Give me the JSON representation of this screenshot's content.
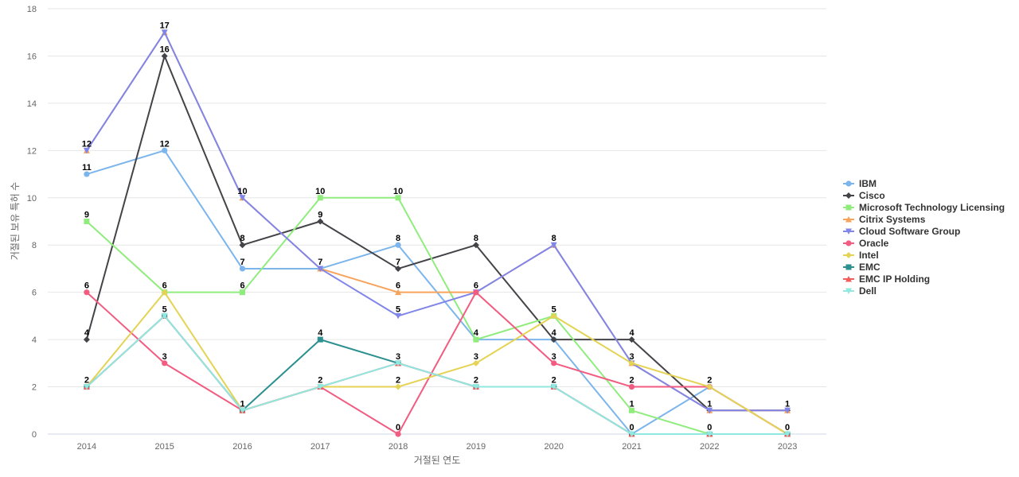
{
  "chart_data": {
    "type": "line",
    "title": "",
    "xlabel": "거절된 연도",
    "ylabel": "거절된 보유 특허 수",
    "categories": [
      "2014",
      "2015",
      "2016",
      "2017",
      "2018",
      "2019",
      "2020",
      "2021",
      "2022",
      "2023"
    ],
    "ylim": [
      0,
      18
    ],
    "yticks": [
      0,
      2,
      4,
      6,
      8,
      10,
      12,
      14,
      16,
      18
    ],
    "grid": true,
    "legend_position": "right",
    "series": [
      {
        "name": "IBM",
        "color": "#7cb5ec",
        "marker": "circle",
        "values": [
          11,
          12,
          7,
          7,
          8,
          4,
          4,
          0,
          2,
          0
        ]
      },
      {
        "name": "Cisco",
        "color": "#434348",
        "marker": "diamond",
        "values": [
          4,
          16,
          8,
          9,
          7,
          8,
          4,
          4,
          1,
          1
        ]
      },
      {
        "name": "Microsoft Technology Licensing",
        "color": "#90ed7d",
        "marker": "square",
        "values": [
          9,
          6,
          6,
          10,
          10,
          4,
          5,
          1,
          0,
          0
        ]
      },
      {
        "name": "Citrix Systems",
        "color": "#f7a35c",
        "marker": "triangle",
        "values": [
          12,
          17,
          10,
          7,
          6,
          6,
          8,
          3,
          1,
          1
        ]
      },
      {
        "name": "Cloud Software Group",
        "color": "#8085e9",
        "marker": "triangle-down",
        "values": [
          12,
          17,
          10,
          7,
          5,
          6,
          8,
          3,
          1,
          1
        ]
      },
      {
        "name": "Oracle",
        "color": "#f15c80",
        "marker": "circle",
        "values": [
          6,
          3,
          1,
          2,
          0,
          6,
          3,
          2,
          2,
          0
        ]
      },
      {
        "name": "Intel",
        "color": "#e4d354",
        "marker": "diamond",
        "values": [
          2,
          6,
          1,
          2,
          2,
          3,
          5,
          3,
          2,
          0
        ]
      },
      {
        "name": "EMC",
        "color": "#2b908f",
        "marker": "square",
        "values": [
          2,
          5,
          1,
          4,
          3,
          2,
          2,
          0,
          0,
          0
        ]
      },
      {
        "name": "EMC IP Holding",
        "color": "#f45b5b",
        "marker": "triangle",
        "values": [
          2,
          5,
          1,
          2,
          3,
          2,
          2,
          0,
          0,
          0
        ]
      },
      {
        "name": "Dell",
        "color": "#91e8e1",
        "marker": "triangle-down",
        "values": [
          2,
          5,
          1,
          2,
          3,
          2,
          2,
          0,
          0,
          0
        ]
      }
    ],
    "data_labels": [
      {
        "x": "2014",
        "value": 12
      },
      {
        "x": "2014",
        "value": 11
      },
      {
        "x": "2014",
        "value": 9
      },
      {
        "x": "2014",
        "value": 6
      },
      {
        "x": "2014",
        "value": 4
      },
      {
        "x": "2014",
        "value": 2
      },
      {
        "x": "2015",
        "value": 17
      },
      {
        "x": "2015",
        "value": 16
      },
      {
        "x": "2015",
        "value": 12
      },
      {
        "x": "2015",
        "value": 6
      },
      {
        "x": "2015",
        "value": 5
      },
      {
        "x": "2015",
        "value": 3
      },
      {
        "x": "2016",
        "value": 10
      },
      {
        "x": "2016",
        "value": 8
      },
      {
        "x": "2016",
        "value": 7
      },
      {
        "x": "2016",
        "value": 6
      },
      {
        "x": "2016",
        "value": 1
      },
      {
        "x": "2017",
        "value": 10
      },
      {
        "x": "2017",
        "value": 9
      },
      {
        "x": "2017",
        "value": 7
      },
      {
        "x": "2017",
        "value": 4
      },
      {
        "x": "2017",
        "value": 2
      },
      {
        "x": "2018",
        "value": 10
      },
      {
        "x": "2018",
        "value": 8
      },
      {
        "x": "2018",
        "value": 7
      },
      {
        "x": "2018",
        "value": 6
      },
      {
        "x": "2018",
        "value": 5
      },
      {
        "x": "2018",
        "value": 3
      },
      {
        "x": "2018",
        "value": 2
      },
      {
        "x": "2018",
        "value": 0
      },
      {
        "x": "2019",
        "value": 8
      },
      {
        "x": "2019",
        "value": 6
      },
      {
        "x": "2019",
        "value": 4
      },
      {
        "x": "2019",
        "value": 3
      },
      {
        "x": "2019",
        "value": 2
      },
      {
        "x": "2020",
        "value": 8
      },
      {
        "x": "2020",
        "value": 5
      },
      {
        "x": "2020",
        "value": 4
      },
      {
        "x": "2020",
        "value": 3
      },
      {
        "x": "2020",
        "value": 2
      },
      {
        "x": "2021",
        "value": 4
      },
      {
        "x": "2021",
        "value": 3
      },
      {
        "x": "2021",
        "value": 2
      },
      {
        "x": "2021",
        "value": 1
      },
      {
        "x": "2021",
        "value": 0
      },
      {
        "x": "2022",
        "value": 2
      },
      {
        "x": "2022",
        "value": 1
      },
      {
        "x": "2022",
        "value": 0
      },
      {
        "x": "2023",
        "value": 1
      },
      {
        "x": "2023",
        "value": 0
      }
    ]
  }
}
